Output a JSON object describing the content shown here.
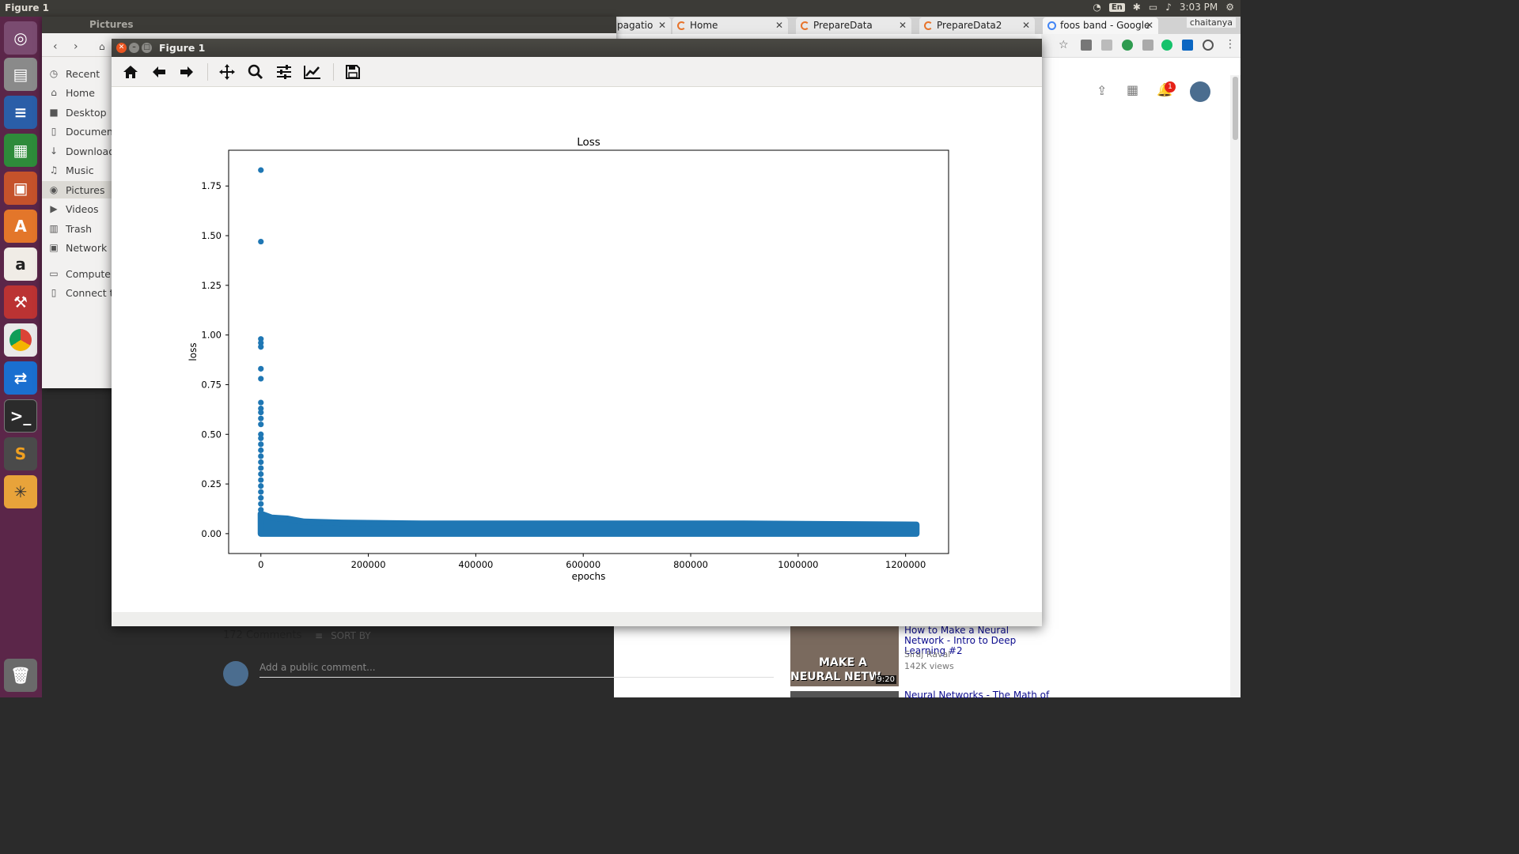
{
  "top_panel": {
    "title": "Figure 1",
    "keyboard": "En",
    "time": "3:03 PM"
  },
  "files": {
    "window_title": "Pictures",
    "sidebar": [
      {
        "label": "Recent",
        "icon": "clock-icon"
      },
      {
        "label": "Home",
        "icon": "home-icon"
      },
      {
        "label": "Desktop",
        "icon": "folder-icon"
      },
      {
        "label": "Document",
        "icon": "document-icon"
      },
      {
        "label": "Download",
        "icon": "download-icon"
      },
      {
        "label": "Music",
        "icon": "music-icon"
      },
      {
        "label": "Pictures",
        "icon": "camera-icon"
      },
      {
        "label": "Videos",
        "icon": "video-icon"
      },
      {
        "label": "Trash",
        "icon": "trash-icon"
      },
      {
        "label": "Network",
        "icon": "network-icon"
      },
      {
        "label": "Computer",
        "icon": "drive-icon"
      },
      {
        "label": "Connect to",
        "icon": "server-icon"
      }
    ]
  },
  "browser": {
    "tabs": [
      {
        "label": "pagatio"
      },
      {
        "label": "Home"
      },
      {
        "label": "PrepareData"
      },
      {
        "label": "PrepareData2"
      },
      {
        "label": "foos band - Google"
      }
    ],
    "user": "chaitanya",
    "notification_count": "1"
  },
  "figure": {
    "window_title": "Figure 1",
    "toolbar": [
      "home-icon",
      "back-arrow-icon",
      "forward-arrow-icon",
      "pan-icon",
      "zoom-icon",
      "configure-subplots-icon",
      "edit-axes-icon",
      "save-icon"
    ]
  },
  "chart_data": {
    "type": "scatter",
    "title": "Loss",
    "xlabel": "epochs",
    "ylabel": "loss",
    "xlim": [
      -60000,
      1280000
    ],
    "ylim": [
      -0.1,
      1.93
    ],
    "xticks": [
      0,
      200000,
      400000,
      600000,
      800000,
      1000000,
      1200000
    ],
    "xtick_labels": [
      "0",
      "200000",
      "400000",
      "600000",
      "800000",
      "1000000",
      "1200000"
    ],
    "yticks": [
      0.0,
      0.25,
      0.5,
      0.75,
      1.0,
      1.25,
      1.5,
      1.75
    ],
    "ytick_labels": [
      "0.00",
      "0.25",
      "0.50",
      "0.75",
      "1.00",
      "1.25",
      "1.50",
      "1.75"
    ],
    "color": "#1f77b4",
    "outlier_points": [
      [
        0,
        1.83
      ],
      [
        0,
        1.47
      ],
      [
        0,
        0.98
      ],
      [
        0,
        0.96
      ],
      [
        0,
        0.94
      ],
      [
        0,
        0.83
      ],
      [
        0,
        0.78
      ],
      [
        0,
        0.66
      ],
      [
        0,
        0.63
      ],
      [
        0,
        0.61
      ],
      [
        0,
        0.58
      ],
      [
        0,
        0.55
      ],
      [
        0,
        0.5
      ],
      [
        0,
        0.48
      ],
      [
        0,
        0.45
      ],
      [
        0,
        0.42
      ],
      [
        0,
        0.39
      ],
      [
        0,
        0.36
      ],
      [
        0,
        0.33
      ],
      [
        0,
        0.3
      ],
      [
        0,
        0.27
      ],
      [
        0,
        0.24
      ],
      [
        0,
        0.21
      ],
      [
        0,
        0.18
      ],
      [
        0,
        0.15
      ],
      [
        0,
        0.12
      ]
    ],
    "band_upper": [
      [
        0,
        0.1
      ],
      [
        10000,
        0.09
      ],
      [
        20000,
        0.08
      ],
      [
        50000,
        0.075
      ],
      [
        80000,
        0.06
      ],
      [
        150000,
        0.055
      ],
      [
        300000,
        0.05
      ],
      [
        600000,
        0.05
      ],
      [
        900000,
        0.05
      ],
      [
        1220000,
        0.045
      ]
    ],
    "band_lower": 0.0,
    "x_max": 1220000,
    "grid": false
  },
  "youtube": {
    "comments_count": "172 Comments",
    "sort_by": "SORT BY",
    "add_comment_placeholder": "Add a public comment...",
    "rec1": {
      "title": "How to Make a Neural Network - Intro to Deep Learning #2",
      "channel": "Siraj Raval",
      "views": "142K views",
      "thumb_text1": "MAKE A",
      "thumb_text2": "NEURAL NETW",
      "duration": "9:20"
    },
    "rec2": {
      "title": "Neural Networks - The Math of"
    }
  }
}
